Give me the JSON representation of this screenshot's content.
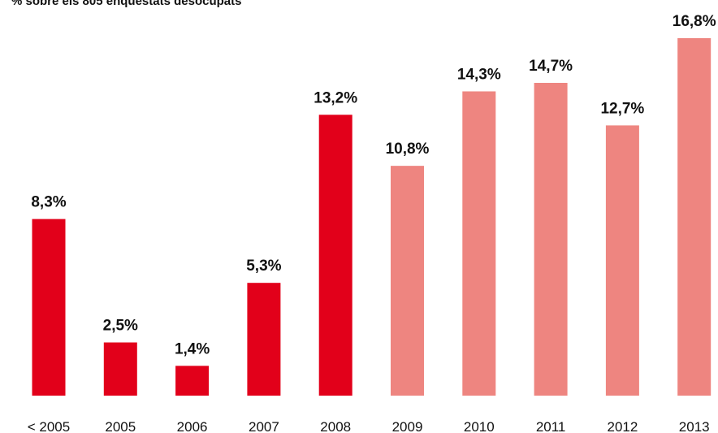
{
  "chart_data": {
    "type": "bar",
    "title": "% sobre els 805 enquestats desocupats",
    "categories": [
      "< 2005",
      "2005",
      "2006",
      "2007",
      "2008",
      "2009",
      "2010",
      "2011",
      "2012",
      "2013"
    ],
    "values": [
      8.3,
      2.5,
      1.4,
      5.3,
      13.2,
      10.8,
      14.3,
      14.7,
      12.7,
      16.8
    ],
    "value_labels": [
      "8,3%",
      "2,5%",
      "1,4%",
      "5,3%",
      "13,2%",
      "10,8%",
      "14,3%",
      "14,7%",
      "12,7%",
      "16,8%"
    ],
    "colors": [
      "#e2001a",
      "#e2001a",
      "#e2001a",
      "#e2001a",
      "#e2001a",
      "#ee8580",
      "#ee8580",
      "#ee8580",
      "#ee8580",
      "#ee8580"
    ]
  }
}
